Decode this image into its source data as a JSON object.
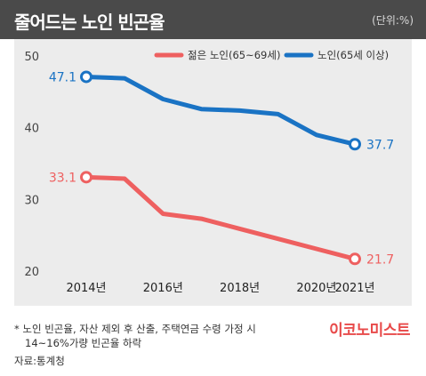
{
  "header": {
    "title": "줄어드는 노인 빈곤율",
    "unit": "(단위:%)"
  },
  "colors": {
    "senior": "#1a73c4",
    "young_senior": "#ee6060",
    "title_bg": "#4a4a4a",
    "plot_bg": "#ececec",
    "brand": "#e84a4a"
  },
  "chart_data": {
    "type": "line",
    "x": [
      2014,
      2015,
      2016,
      2017,
      2018,
      2019,
      2020,
      2021
    ],
    "xticks": [
      2014,
      2016,
      2018,
      2020,
      2021
    ],
    "xtick_labels": [
      "2014년",
      "2016년",
      "2018년",
      "2020년",
      "2021년"
    ],
    "yticks": [
      20,
      30,
      40,
      50
    ],
    "ytick_labels": [
      "20",
      "30",
      "40",
      "50"
    ],
    "ylim": [
      20,
      51
    ],
    "grid": false,
    "legend_position": "top-right",
    "series": [
      {
        "name": "노인(65세 이상)",
        "color": "#1a73c4",
        "values": [
          47.1,
          46.9,
          44.0,
          42.6,
          42.4,
          41.9,
          39.0,
          37.7
        ],
        "labels": {
          "first": "47.1",
          "last": "37.7"
        }
      },
      {
        "name": "젊은 노인(65~69세)",
        "color": "#ee6060",
        "values": [
          33.1,
          32.9,
          28.0,
          27.3,
          25.9,
          24.5,
          23.1,
          21.7
        ],
        "labels": {
          "first": "33.1",
          "last": "21.7"
        }
      }
    ]
  },
  "footer": {
    "note_line1": "* 노인 빈곤율, 자산 제외 후 산출, 주택연금 수령 가정 시",
    "note_line2": "14~16%가량 빈곤율 하락",
    "source": "자료:통계청",
    "brand": "이코노미스트"
  }
}
